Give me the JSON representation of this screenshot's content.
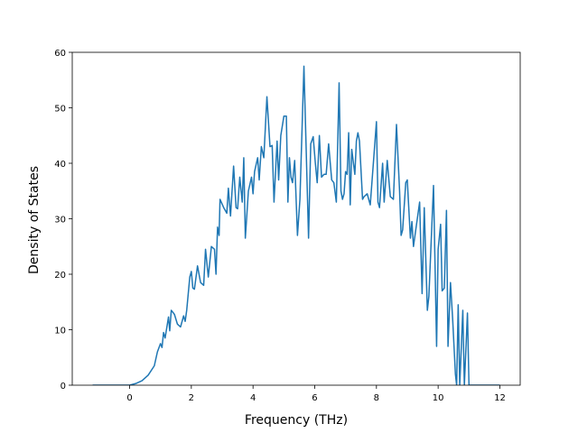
{
  "chart_data": {
    "type": "line",
    "xlabel": "Frequency (THz)",
    "ylabel": "Density of States",
    "x": [
      -1.2,
      0,
      0.2,
      0.4,
      0.6,
      0.8,
      0.9,
      1.0,
      1.05,
      1.1,
      1.15,
      1.26,
      1.3,
      1.35,
      1.45,
      1.55,
      1.65,
      1.75,
      1.8,
      1.85,
      1.95,
      2.0,
      2.05,
      2.1,
      2.2,
      2.3,
      2.4,
      2.46,
      2.55,
      2.65,
      2.75,
      2.8,
      2.85,
      2.9,
      2.93,
      3.05,
      3.15,
      3.2,
      3.27,
      3.37,
      3.45,
      3.5,
      3.57,
      3.65,
      3.7,
      3.75,
      3.85,
      3.95,
      4.0,
      4.05,
      4.15,
      4.2,
      4.27,
      4.35,
      4.45,
      4.55,
      4.62,
      4.68,
      4.78,
      4.83,
      4.9,
      5.0,
      5.08,
      5.13,
      5.18,
      5.23,
      5.28,
      5.35,
      5.44,
      5.52,
      5.65,
      5.8,
      5.87,
      5.95,
      6.02,
      6.08,
      6.15,
      6.22,
      6.3,
      6.37,
      6.45,
      6.55,
      6.62,
      6.7,
      6.79,
      6.85,
      6.9,
      6.95,
      7.0,
      7.05,
      7.1,
      7.15,
      7.2,
      7.3,
      7.35,
      7.4,
      7.45,
      7.55,
      7.6,
      7.7,
      7.8,
      8.0,
      8.05,
      8.1,
      8.2,
      8.25,
      8.35,
      8.45,
      8.55,
      8.65,
      8.75,
      8.8,
      8.85,
      8.95,
      9.0,
      9.1,
      9.15,
      9.2,
      9.3,
      9.4,
      9.48,
      9.55,
      9.65,
      9.7,
      9.85,
      9.95,
      10.0,
      10.08,
      10.13,
      10.2,
      10.27,
      10.32,
      10.4,
      10.47,
      10.56,
      10.6,
      10.65,
      10.7,
      10.8,
      10.85,
      10.95,
      11.0,
      12.0
    ],
    "series": [
      {
        "color": "#1f77b4",
        "values": [
          0,
          0,
          0.3,
          0.8,
          1.8,
          3.5,
          6,
          7.5,
          6.8,
          9.5,
          8.5,
          12.3,
          9.8,
          13.5,
          12.8,
          11,
          10.5,
          12.5,
          11.5,
          13.5,
          19.5,
          20.5,
          17.5,
          17.3,
          21.5,
          18.5,
          18,
          24.5,
          19.5,
          25,
          24.5,
          20,
          28.5,
          27,
          33.5,
          32,
          31,
          35.5,
          30.5,
          39.5,
          32,
          31.8,
          37.5,
          33,
          41,
          26.5,
          35,
          37.5,
          34.5,
          38.5,
          41,
          37,
          43,
          41,
          52,
          43,
          43.2,
          33,
          44,
          37,
          45,
          48.5,
          48.5,
          33,
          41,
          37.5,
          36.5,
          40.5,
          27,
          33.5,
          57.5,
          26.5,
          43.5,
          44.8,
          40,
          36.5,
          45,
          37.5,
          38,
          38,
          43.5,
          37,
          36.5,
          33,
          54.5,
          35,
          33.5,
          34.5,
          38.5,
          38,
          45.5,
          32.5,
          42.5,
          38,
          44,
          45.5,
          44,
          33.5,
          34,
          34.5,
          32.5,
          47.5,
          33,
          32,
          40,
          33,
          40.5,
          34,
          33.5,
          47,
          35,
          27,
          28,
          36.5,
          37,
          26.5,
          29.5,
          25,
          29,
          33,
          16.5,
          32,
          13.5,
          16,
          36,
          7,
          24.5,
          29,
          17,
          17.5,
          31.5,
          7,
          18.5,
          12,
          2,
          0,
          14.5,
          0,
          13.5,
          0,
          13,
          0,
          0
        ]
      }
    ],
    "xlim": [
      -1.86,
      12.66
    ],
    "xticks": [
      0,
      2,
      4,
      6,
      8,
      10,
      12
    ],
    "ylim": [
      0,
      60
    ],
    "yticks": [
      0,
      10,
      20,
      30,
      40,
      50,
      60
    ]
  }
}
